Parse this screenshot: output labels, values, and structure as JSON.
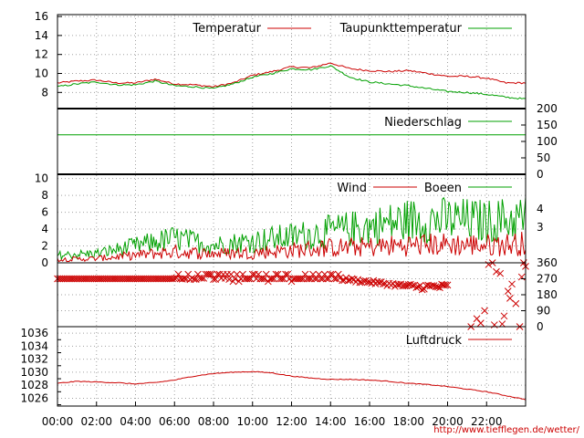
{
  "url_text": "http://www.tiefflegen.de/wetter/",
  "colors": {
    "red": "#cc0000",
    "green": "#00a000"
  },
  "x_tick_labels": [
    "00:00",
    "02:00",
    "04:00",
    "06:00",
    "08:00",
    "10:00",
    "12:00",
    "14:00",
    "16:00",
    "18:00",
    "20:00",
    "22:00"
  ],
  "chart_data": [
    {
      "type": "line",
      "panel": "temperature",
      "x_hours": [
        0,
        1,
        2,
        3,
        4,
        5,
        6,
        7,
        8,
        9,
        10,
        11,
        12,
        13,
        14,
        15,
        16,
        17,
        18,
        19,
        20,
        21,
        22,
        23,
        24
      ],
      "series": [
        {
          "name": "Temperatur",
          "color": "#cc0000",
          "values": [
            9.0,
            9.2,
            9.3,
            9.0,
            9.0,
            9.4,
            8.9,
            8.8,
            8.6,
            9.0,
            9.8,
            10.2,
            10.7,
            10.6,
            11.1,
            10.5,
            10.3,
            10.2,
            10.3,
            10.0,
            9.7,
            9.7,
            9.5,
            9.0,
            9.0
          ]
        },
        {
          "name": "Taupunkttemperatur",
          "color": "#00a000",
          "values": [
            8.6,
            8.9,
            9.1,
            8.8,
            8.8,
            9.2,
            8.7,
            8.6,
            8.4,
            8.9,
            9.6,
            10.0,
            10.5,
            10.4,
            10.8,
            9.6,
            9.1,
            8.9,
            8.7,
            8.4,
            8.1,
            8.0,
            7.8,
            7.5,
            7.3
          ]
        }
      ],
      "y_ticks": [
        "8",
        "10",
        "12",
        "14",
        "16"
      ],
      "ylim": [
        6.3,
        16.2
      ]
    },
    {
      "type": "line",
      "panel": "precipitation",
      "series": [
        {
          "name": "Niederschlag",
          "color": "#00a000",
          "values": [
            120,
            120
          ]
        }
      ],
      "y_ticks": [
        "0",
        "50",
        "100",
        "150",
        "200"
      ],
      "ylim": [
        0,
        200
      ]
    },
    {
      "type": "line",
      "panel": "wind",
      "series": [
        {
          "name": "Wind",
          "color": "#cc0000"
        },
        {
          "name": "Boeen",
          "color": "#00a000"
        }
      ],
      "wind_mean_hours": [
        0,
        2,
        4,
        6,
        8,
        10,
        12,
        14,
        16,
        18,
        20,
        22,
        24
      ],
      "wind_mean_values": [
        0.4,
        0.5,
        0.9,
        1.3,
        1.1,
        1.2,
        1.5,
        1.8,
        1.9,
        2.1,
        2.2,
        2.1,
        2.3
      ],
      "gust_mean_values": [
        0.9,
        1.1,
        2.0,
        2.9,
        2.1,
        2.6,
        3.1,
        3.7,
        4.3,
        5.0,
        5.1,
        4.9,
        5.3
      ],
      "y_ticks_left": [
        "0",
        "2",
        "4",
        "6",
        "8",
        "10"
      ],
      "ylim_left": [
        0,
        10.5
      ],
      "y_ticks_right": [
        "3",
        "4"
      ]
    },
    {
      "type": "scatter",
      "panel": "wind_direction",
      "y_ticks": [
        "0",
        "90",
        "180",
        "270",
        "360"
      ],
      "ylim": [
        0,
        360
      ]
    },
    {
      "type": "line",
      "panel": "pressure",
      "series": [
        {
          "name": "Luftdruck",
          "color": "#cc0000",
          "x_hours": [
            0,
            1,
            2,
            3,
            4,
            5,
            6,
            7,
            8,
            9,
            10,
            11,
            12,
            13,
            14,
            15,
            16,
            17,
            18,
            19,
            20,
            21,
            22,
            23,
            24
          ],
          "values": [
            1028.3,
            1028.6,
            1028.5,
            1028.4,
            1028.2,
            1028.4,
            1028.8,
            1029.4,
            1029.8,
            1030.0,
            1030.1,
            1029.9,
            1029.4,
            1029.1,
            1028.9,
            1028.9,
            1028.8,
            1028.6,
            1028.3,
            1028.1,
            1027.8,
            1027.4,
            1027.0,
            1026.4,
            1025.8
          ]
        }
      ],
      "y_ticks": [
        "1026",
        "1028",
        "1030",
        "1032",
        "1034",
        "1036"
      ],
      "ylim": [
        1024.8,
        1037
      ]
    }
  ]
}
